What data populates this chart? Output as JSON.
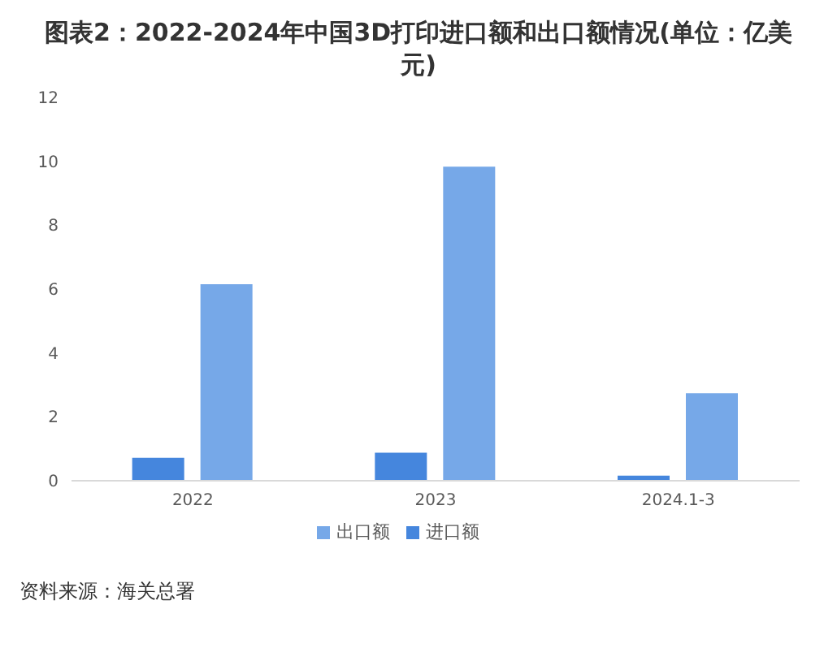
{
  "chart_data": {
    "type": "bar",
    "title": "图表2：2022-2024年中国3D打印进口额和出口额情况(单位：亿美元)",
    "categories": [
      "2022",
      "2023",
      "2024.1-3"
    ],
    "series": [
      {
        "name": "进口额",
        "color": "#4586dd",
        "values": [
          0.72,
          0.88,
          0.16
        ]
      },
      {
        "name": "出口额",
        "color": "#76a8e8",
        "values": [
          6.15,
          9.83,
          2.74
        ]
      }
    ],
    "ylim": [
      0,
      12
    ],
    "yticks": [
      0,
      2,
      4,
      6,
      8,
      10,
      12
    ],
    "grid": false,
    "legend": "bottom",
    "annotations": [
      "资料来源：海关总署"
    ]
  }
}
